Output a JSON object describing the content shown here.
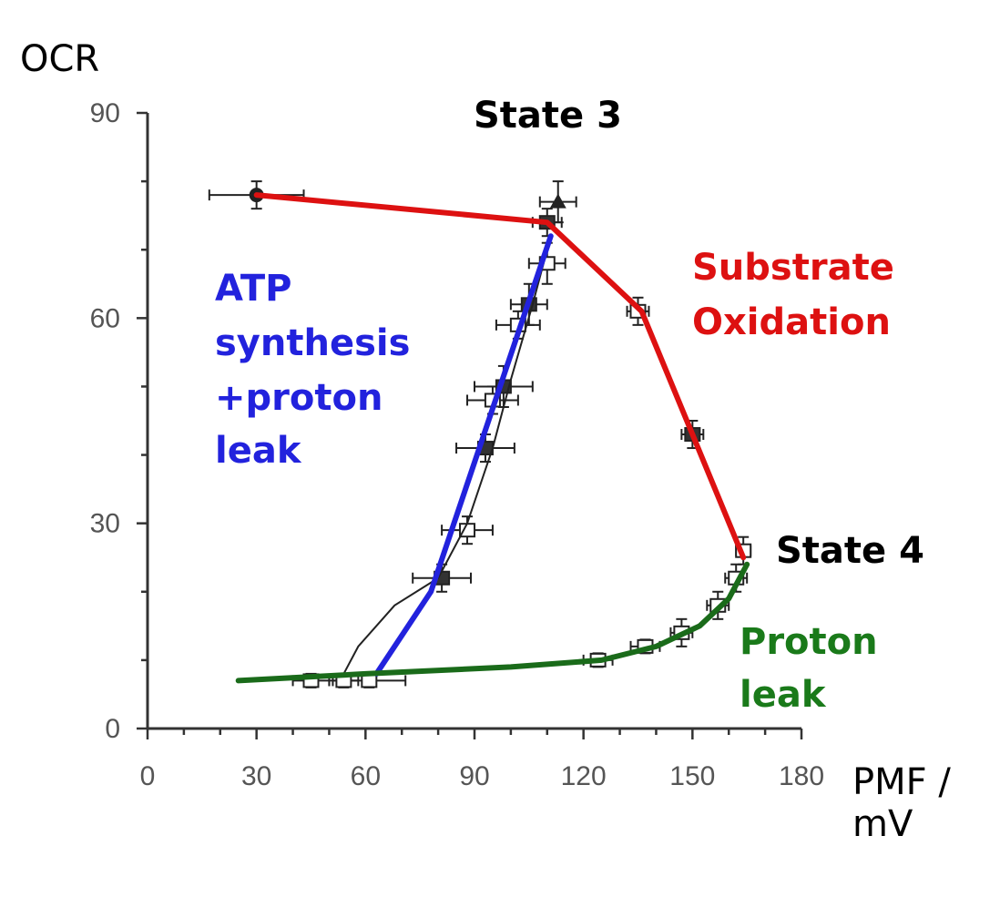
{
  "chart_data": {
    "type": "line",
    "xlabel": "PMF / mV",
    "xlabel_lines": [
      "PMF /",
      "mV"
    ],
    "ylabel": "OCR",
    "xlim": [
      0,
      180
    ],
    "ylim": [
      0,
      90
    ],
    "xticks": [
      "0",
      "30",
      "60",
      "90",
      "120",
      "150",
      "180"
    ],
    "yticks": [
      "0",
      "30",
      "60",
      "90"
    ],
    "grid": false,
    "measured_points": [
      {
        "x": 30,
        "y": 78,
        "xerr": 13,
        "yerr": 2
      },
      {
        "x": 113,
        "y": 77,
        "xerr": 5,
        "yerr": 3
      },
      {
        "x": 110,
        "y": 74,
        "xerr": 4,
        "yerr": 2
      },
      {
        "x": 110,
        "y": 68,
        "xerr": 5,
        "yerr": 3
      },
      {
        "x": 105,
        "y": 62,
        "xerr": 5,
        "yerr": 3
      },
      {
        "x": 102,
        "y": 59,
        "xerr": 6,
        "yerr": 2
      },
      {
        "x": 98,
        "y": 50,
        "xerr": 8,
        "yerr": 3
      },
      {
        "x": 95,
        "y": 48,
        "xerr": 7,
        "yerr": 2
      },
      {
        "x": 93,
        "y": 41,
        "xerr": 8,
        "yerr": 2
      },
      {
        "x": 88,
        "y": 29,
        "xerr": 7,
        "yerr": 2
      },
      {
        "x": 81,
        "y": 22,
        "xerr": 8,
        "yerr": 2
      },
      {
        "x": 135,
        "y": 61,
        "xerr": 3,
        "yerr": 2
      },
      {
        "x": 150,
        "y": 43,
        "xerr": 3,
        "yerr": 2
      },
      {
        "x": 164,
        "y": 26,
        "xerr": 2,
        "yerr": 2
      },
      {
        "x": 162,
        "y": 22,
        "xerr": 3,
        "yerr": 2
      },
      {
        "x": 157,
        "y": 18,
        "xerr": 3,
        "yerr": 2
      },
      {
        "x": 147,
        "y": 14,
        "xerr": 3,
        "yerr": 2
      },
      {
        "x": 137,
        "y": 12,
        "xerr": 4,
        "yerr": 1
      },
      {
        "x": 124,
        "y": 10,
        "xerr": 4,
        "yerr": 1
      },
      {
        "x": 61,
        "y": 7,
        "xerr": 10,
        "yerr": 1
      },
      {
        "x": 45,
        "y": 7,
        "xerr": 5,
        "yerr": 1
      },
      {
        "x": 54,
        "y": 7,
        "xerr": 4,
        "yerr": 1
      }
    ],
    "measured_curve": {
      "x": [
        54,
        58,
        68,
        80,
        88,
        95,
        100,
        106,
        111
      ],
      "y": [
        8,
        12,
        18,
        22,
        30,
        41,
        51,
        62,
        72
      ]
    },
    "series": [
      {
        "name": "Substrate Oxidation",
        "color": "#dd1111",
        "x": [
          30,
          110,
          136,
          150,
          164
        ],
        "y": [
          78,
          74,
          61,
          43,
          25
        ]
      },
      {
        "name": "ATP synthesis +proton leak",
        "color": "#2222dd",
        "x": [
          63,
          78,
          111
        ],
        "y": [
          8,
          20,
          72
        ]
      },
      {
        "name": "Proton leak",
        "color": "#1a6b1a",
        "x": [
          25,
          60,
          100,
          125,
          140,
          152,
          160,
          165
        ],
        "y": [
          7,
          8,
          9,
          10,
          12,
          15,
          19,
          24
        ]
      }
    ],
    "annotations": [
      {
        "text": "State 3",
        "color": "#000000"
      },
      {
        "text": "State 4",
        "color": "#000000"
      },
      {
        "text": "Substrate",
        "color": "#dd1111"
      },
      {
        "text": "Oxidation",
        "color": "#dd1111"
      },
      {
        "text": "ATP",
        "color": "#2222dd"
      },
      {
        "text": "synthesis",
        "color": "#2222dd"
      },
      {
        "text": "+proton",
        "color": "#2222dd"
      },
      {
        "text": "leak",
        "color": "#2222dd"
      },
      {
        "text": "Proton",
        "color": "#1a7a1a"
      },
      {
        "text": "leak",
        "color": "#1a7a1a"
      }
    ]
  }
}
